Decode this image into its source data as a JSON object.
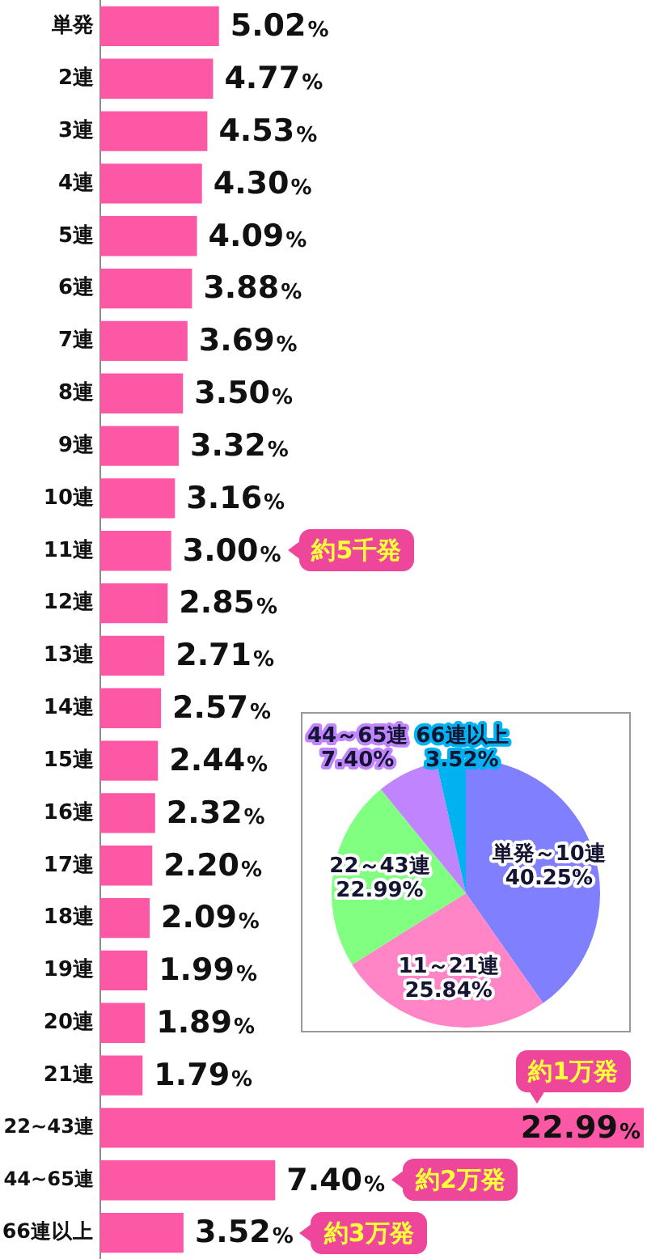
{
  "chart_data": [
    {
      "type": "bar",
      "orientation": "horizontal",
      "categories": [
        "単発",
        "2連",
        "3連",
        "4連",
        "5連",
        "6連",
        "7連",
        "8連",
        "9連",
        "10連",
        "11連",
        "12連",
        "13連",
        "14連",
        "15連",
        "16連",
        "17連",
        "18連",
        "19連",
        "20連",
        "21連",
        "22~43連",
        "44~65連",
        "66連以上"
      ],
      "values": [
        5.02,
        4.77,
        4.53,
        4.3,
        4.09,
        3.88,
        3.69,
        3.5,
        3.32,
        3.16,
        3.0,
        2.85,
        2.71,
        2.57,
        2.44,
        2.32,
        2.2,
        2.09,
        1.99,
        1.89,
        1.79,
        22.99,
        7.4,
        3.52
      ],
      "color": "#fd58a6",
      "value_labels": [
        "5.02%",
        "4.77%",
        "4.53%",
        "4.30%",
        "4.09%",
        "3.88%",
        "3.69%",
        "3.50%",
        "3.32%",
        "3.16%",
        "3.00%",
        "2.85%",
        "2.71%",
        "2.57%",
        "2.44%",
        "2.32%",
        "2.20%",
        "2.09%",
        "1.99%",
        "1.89%",
        "1.79%",
        "22.99%",
        "7.40%",
        "3.52%"
      ],
      "annotations": [
        "約5千発",
        {
          "text": "約1万発",
          "x": 22.99,
          "y": "22~43連"
        },
        "約2万発",
        "約3万発"
      ],
      "tick_labels": "y"
    },
    {
      "type": "pie",
      "categories": [
        "単発～10連",
        "11～21連",
        "22～43連",
        "44～65連",
        "66連以上"
      ],
      "values": [
        40.25,
        25.84,
        22.99,
        7.4,
        3.52
      ],
      "colors": [
        "#8080ff",
        "#ff85c6",
        "#80ff80",
        "#c184ff",
        "#00b2f0"
      ],
      "value_labels": [
        "40.25%",
        "25.84%",
        "22.99%",
        "7.40%",
        "3.52%"
      ]
    }
  ]
}
